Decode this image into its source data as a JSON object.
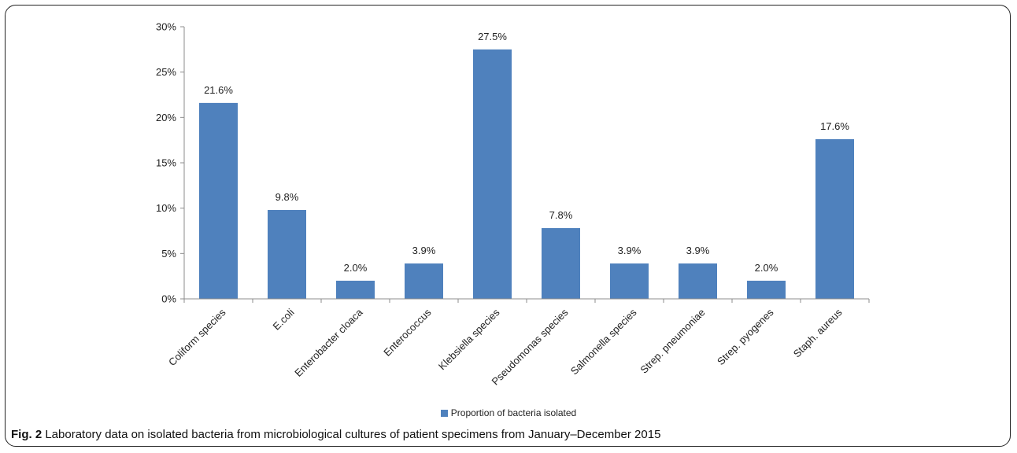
{
  "chart_data": {
    "type": "bar",
    "categories": [
      "Coliform species",
      "E.coli",
      "Enterobacter cloaca",
      "Enterococcus",
      "Klebsiella species",
      "Pseudomonas species",
      "Salmonella species",
      "Strep. pneumoniae",
      "Strep. pyogenes",
      "Staph. aureus"
    ],
    "series": [
      {
        "name": "Proportion of bacteria isolated",
        "values": [
          21.6,
          9.8,
          2.0,
          3.9,
          27.5,
          7.8,
          3.9,
          3.9,
          2.0,
          17.6
        ],
        "data_labels": [
          "21.6%",
          "9.8%",
          "2.0%",
          "3.9%",
          "27.5%",
          "7.8%",
          "3.9%",
          "3.9%",
          "2.0%",
          "17.6%"
        ]
      }
    ],
    "ylim": [
      0,
      30
    ],
    "y_ticks": [
      0,
      5,
      10,
      15,
      20,
      25,
      30
    ],
    "y_tick_labels": [
      "0%",
      "5%",
      "10%",
      "15%",
      "20%",
      "25%",
      "30%"
    ],
    "grid": false,
    "legend_position": "bottom",
    "bar_color": "#4f81bd"
  },
  "legend": {
    "label": "Proportion of bacteria isolated"
  },
  "caption": {
    "prefix": "Fig. 2",
    "text": " Laboratory data on isolated bacteria from microbiological cultures of patient specimens from January–December 2015"
  }
}
